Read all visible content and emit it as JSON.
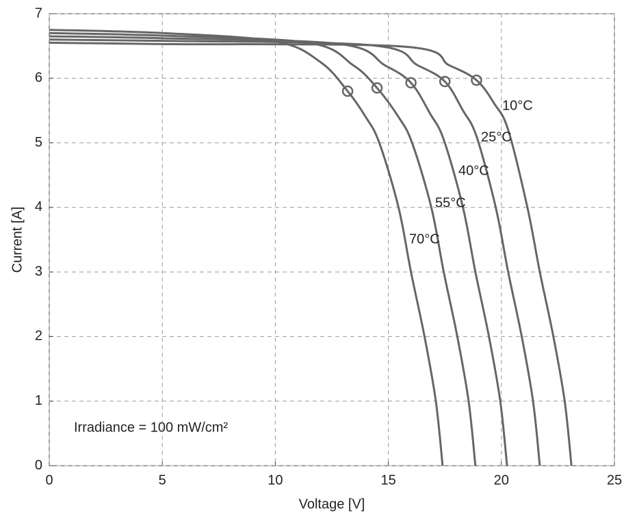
{
  "chart_data": {
    "type": "line",
    "xlabel": "Voltage [V]",
    "ylabel": "Current [A]",
    "annotation": "Irradiance = 100 mW/cm²",
    "xlim": [
      0,
      25
    ],
    "ylim": [
      0,
      7
    ],
    "xticks": [
      0,
      5,
      10,
      15,
      20,
      25
    ],
    "yticks": [
      0,
      1,
      2,
      3,
      4,
      5,
      6,
      7
    ],
    "grid": true,
    "series": [
      {
        "name": "10°C",
        "color": "#666666",
        "x": [
          0,
          5,
          15.7,
          17.7,
          18.9,
          19.7,
          20.3,
          21.15,
          21.7,
          22.3,
          22.8,
          23.1
        ],
        "values": [
          6.55,
          6.53,
          6.49,
          6.2,
          5.97,
          5.6,
          5.2,
          4.0,
          3.0,
          2.0,
          1.0,
          0
        ],
        "mpp_x": 18.9,
        "mpp_y": 5.97
      },
      {
        "name": "25°C",
        "color": "#666666",
        "x": [
          0,
          5,
          14.3,
          16.3,
          17.5,
          18.3,
          18.9,
          19.75,
          20.3,
          20.9,
          21.4,
          21.7
        ],
        "values": [
          6.6,
          6.58,
          6.51,
          6.2,
          5.95,
          5.5,
          5.1,
          4.0,
          3.0,
          2.0,
          1.0,
          0
        ],
        "mpp_x": 17.5,
        "mpp_y": 5.95
      },
      {
        "name": "40°C",
        "color": "#666666",
        "x": [
          0,
          5,
          12.85,
          14.85,
          16.0,
          16.85,
          17.45,
          18.3,
          18.85,
          19.45,
          19.95,
          20.25
        ],
        "values": [
          6.65,
          6.62,
          6.53,
          6.2,
          5.93,
          5.45,
          5.05,
          4.0,
          3.0,
          2.0,
          1.0,
          0
        ],
        "mpp_x": 16.0,
        "mpp_y": 5.93
      },
      {
        "name": "55°C",
        "color": "#666666",
        "x": [
          0,
          5,
          11.45,
          13.45,
          14.5,
          15.45,
          16.05,
          16.9,
          17.45,
          18.05,
          18.55,
          18.85
        ],
        "values": [
          6.7,
          6.66,
          6.55,
          6.2,
          5.85,
          5.4,
          5.0,
          4.0,
          3.0,
          2.0,
          1.0,
          0
        ],
        "mpp_x": 14.5,
        "mpp_y": 5.85
      },
      {
        "name": "70°C",
        "color": "#666666",
        "x": [
          0,
          5,
          10,
          12,
          13.2,
          14,
          14.6,
          15.45,
          16.0,
          16.6,
          17.1,
          17.4
        ],
        "values": [
          6.75,
          6.7,
          6.57,
          6.25,
          5.8,
          5.4,
          5.0,
          4.0,
          3.0,
          2.0,
          1.0,
          0
        ],
        "mpp_x": 13.2,
        "mpp_y": 5.8
      }
    ]
  }
}
